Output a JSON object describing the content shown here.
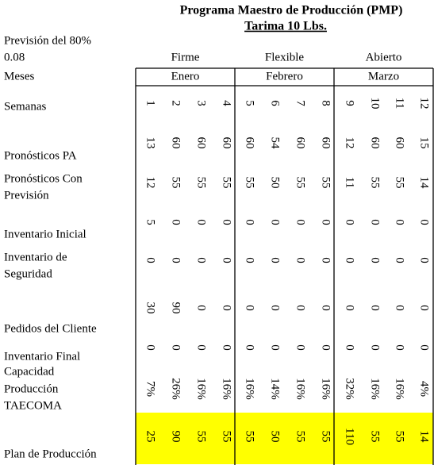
{
  "header": {
    "title": "Programa Maestro de Producción (PMP)",
    "subtitle": "Tarima 10 Lbs."
  },
  "forecast": {
    "label": "Previsión del 80%",
    "value": "0.08"
  },
  "groups": [
    {
      "name": "Firme",
      "month": "Enero"
    },
    {
      "name": "Flexible",
      "month": "Febrero"
    },
    {
      "name": "Abierto",
      "month": "Marzo"
    }
  ],
  "months_label": "Meses",
  "table": {
    "rows": [
      {
        "label": [
          "Semanas"
        ],
        "cells": [
          "1",
          "2",
          "3",
          "4",
          "5",
          "6",
          "7",
          "8",
          "9",
          "10",
          "11",
          "12"
        ]
      },
      {
        "label": [
          "Pronósticos PA"
        ],
        "cells": [
          "13",
          "60",
          "60",
          "60",
          "60",
          "54",
          "60",
          "60",
          "12",
          "60",
          "60",
          "15"
        ]
      },
      {
        "label": [
          "Pronósticos Con",
          "Previsión"
        ],
        "cells": [
          "12",
          "55",
          "55",
          "55",
          "55",
          "50",
          "55",
          "55",
          "11",
          "55",
          "55",
          "14"
        ]
      },
      {
        "label": [
          "Inventario Inicial"
        ],
        "cells": [
          "5",
          "0",
          "0",
          "0",
          "0",
          "0",
          "0",
          "0",
          "0",
          "0",
          "0",
          "0"
        ]
      },
      {
        "label": [
          "Inventario de",
          "Seguridad"
        ],
        "cells": [
          "0",
          "0",
          "0",
          "0",
          "0",
          "0",
          "0",
          "0",
          "0",
          "0",
          "0",
          "0"
        ]
      },
      {
        "label": [
          "Pedidos del Cliente"
        ],
        "cells": [
          "30",
          "90",
          "0",
          "0",
          "0",
          "0",
          "0",
          "0",
          "0",
          "0",
          "0",
          "0"
        ]
      },
      {
        "label": [
          "Inventario Final"
        ],
        "cells": [
          "0",
          "0",
          "0",
          "0",
          "0",
          "0",
          "0",
          "0",
          "0",
          "0",
          "0",
          "0"
        ]
      },
      {
        "label": [
          "Capacidad",
          "Producción",
          "TAECOMA"
        ],
        "cells": [
          "7%",
          "26%",
          "16%",
          "16%",
          "16%",
          "14%",
          "16%",
          "16%",
          "32%",
          "16%",
          "16%",
          "4%"
        ]
      },
      {
        "label": [
          "Plan de Producción"
        ],
        "cells": [
          "25",
          "90",
          "55",
          "55",
          "55",
          "50",
          "55",
          "55",
          "110",
          "55",
          "55",
          "14"
        ]
      }
    ]
  }
}
